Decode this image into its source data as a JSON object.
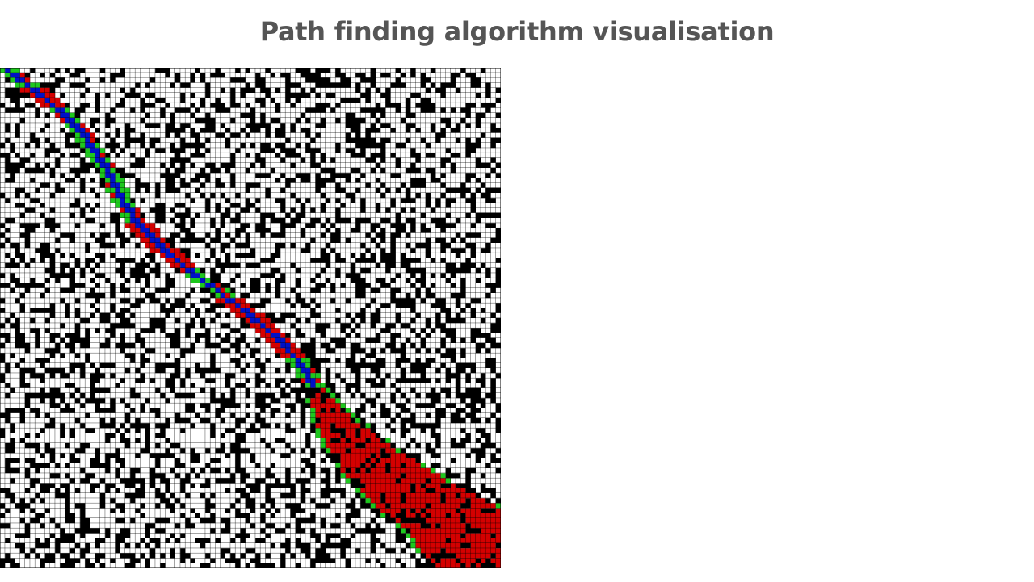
{
  "header": {
    "title": "Path finding algorithm visualisation"
  }
}
